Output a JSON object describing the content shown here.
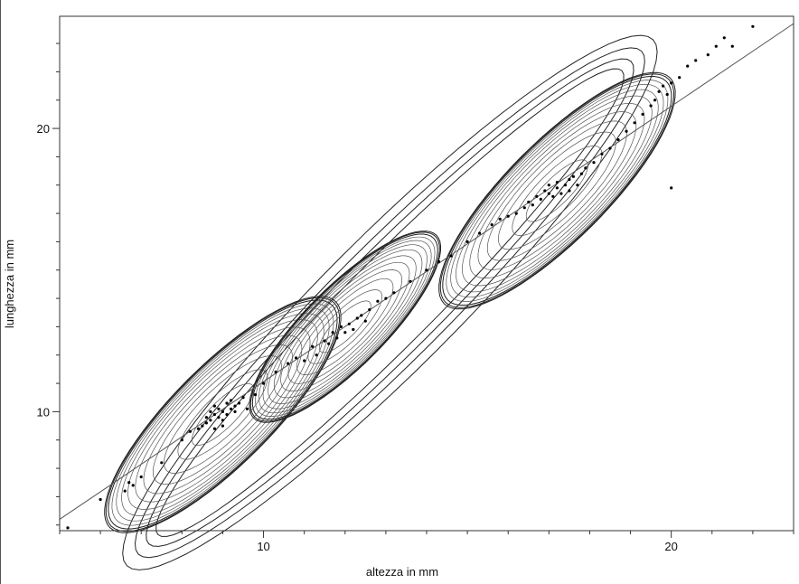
{
  "chart_data": {
    "type": "scatter",
    "title": "",
    "xlabel": "altezza in mm",
    "ylabel": "lunghezza in mm",
    "xlim": [
      5.0,
      23.0
    ],
    "ylim": [
      5.8,
      23.96
    ],
    "x_ticks_labeled": [
      10,
      20
    ],
    "y_ticks_labeled": [
      10,
      20
    ],
    "x_tick_labels": [
      "10",
      "20"
    ],
    "y_tick_labels": [
      "10",
      "20"
    ],
    "x_minor_tick_step": 1,
    "y_minor_tick_step": 1,
    "grid": false,
    "legend": "none",
    "overlays": [
      {
        "kind": "reference-line",
        "from": [
          5.0,
          6.2
        ],
        "to": [
          23.0,
          23.7
        ]
      },
      {
        "kind": "density-contours",
        "modes": [
          [
            9.0,
            9.9
          ],
          [
            12.0,
            13.0
          ],
          [
            17.2,
            17.8
          ]
        ]
      }
    ],
    "series": [
      {
        "points": [
          [
            5.2,
            5.9
          ],
          [
            6.0,
            6.9
          ],
          [
            6.6,
            7.2
          ],
          [
            6.7,
            7.5
          ],
          [
            6.8,
            7.4
          ],
          [
            7.0,
            7.7
          ],
          [
            7.5,
            8.2
          ],
          [
            8.0,
            9.0
          ],
          [
            8.2,
            9.3
          ],
          [
            8.4,
            9.4
          ],
          [
            8.5,
            9.5
          ],
          [
            8.6,
            9.8
          ],
          [
            8.6,
            9.6
          ],
          [
            8.7,
            10.0
          ],
          [
            8.7,
            9.7
          ],
          [
            8.8,
            9.9
          ],
          [
            8.8,
            10.2
          ],
          [
            8.9,
            9.8
          ],
          [
            8.9,
            10.1
          ],
          [
            9.0,
            10.0
          ],
          [
            9.0,
            9.7
          ],
          [
            9.1,
            10.3
          ],
          [
            9.1,
            9.9
          ],
          [
            9.2,
            10.1
          ],
          [
            9.2,
            10.4
          ],
          [
            9.3,
            10.0
          ],
          [
            9.3,
            10.2
          ],
          [
            9.4,
            10.3
          ],
          [
            9.5,
            10.5
          ],
          [
            9.0,
            9.5
          ],
          [
            8.8,
            9.4
          ],
          [
            9.6,
            10.1
          ],
          [
            9.8,
            10.6
          ],
          [
            10.0,
            11.0
          ],
          [
            10.3,
            11.4
          ],
          [
            10.6,
            11.7
          ],
          [
            10.8,
            11.9
          ],
          [
            11.0,
            11.8
          ],
          [
            11.2,
            12.3
          ],
          [
            11.3,
            12.0
          ],
          [
            11.5,
            12.5
          ],
          [
            11.6,
            12.4
          ],
          [
            11.7,
            12.8
          ],
          [
            11.8,
            12.6
          ],
          [
            11.9,
            13.0
          ],
          [
            12.0,
            12.8
          ],
          [
            12.1,
            13.1
          ],
          [
            12.2,
            12.9
          ],
          [
            12.3,
            13.3
          ],
          [
            12.4,
            13.4
          ],
          [
            12.5,
            13.2
          ],
          [
            12.6,
            13.6
          ],
          [
            12.8,
            13.9
          ],
          [
            13.0,
            14.0
          ],
          [
            13.2,
            14.2
          ],
          [
            13.6,
            14.6
          ],
          [
            14.0,
            15.0
          ],
          [
            14.3,
            15.3
          ],
          [
            14.6,
            15.5
          ],
          [
            15.0,
            16.0
          ],
          [
            15.3,
            16.3
          ],
          [
            15.6,
            16.6
          ],
          [
            15.8,
            16.8
          ],
          [
            16.0,
            16.9
          ],
          [
            16.2,
            17.0
          ],
          [
            16.4,
            17.2
          ],
          [
            16.5,
            17.4
          ],
          [
            16.6,
            17.3
          ],
          [
            16.7,
            17.6
          ],
          [
            16.8,
            17.5
          ],
          [
            16.9,
            17.8
          ],
          [
            17.0,
            17.7
          ],
          [
            17.0,
            18.0
          ],
          [
            17.1,
            17.6
          ],
          [
            17.2,
            17.9
          ],
          [
            17.2,
            18.1
          ],
          [
            17.3,
            17.7
          ],
          [
            17.4,
            18.0
          ],
          [
            17.5,
            18.2
          ],
          [
            17.5,
            17.8
          ],
          [
            17.6,
            18.3
          ],
          [
            17.7,
            18.0
          ],
          [
            17.8,
            18.4
          ],
          [
            17.9,
            18.6
          ],
          [
            18.1,
            18.8
          ],
          [
            18.3,
            19.1
          ],
          [
            18.5,
            19.3
          ],
          [
            18.7,
            19.6
          ],
          [
            18.9,
            19.9
          ],
          [
            19.1,
            20.2
          ],
          [
            19.3,
            20.5
          ],
          [
            19.5,
            20.8
          ],
          [
            19.6,
            21.0
          ],
          [
            19.7,
            21.3
          ],
          [
            19.8,
            21.5
          ],
          [
            19.9,
            21.2
          ],
          [
            20.0,
            21.6
          ],
          [
            20.2,
            21.8
          ],
          [
            20.4,
            22.2
          ],
          [
            20.6,
            22.4
          ],
          [
            20.9,
            22.6
          ],
          [
            21.1,
            22.9
          ],
          [
            21.3,
            23.2
          ],
          [
            21.5,
            22.9
          ],
          [
            22.0,
            23.6
          ],
          [
            20.0,
            17.9
          ]
        ]
      }
    ]
  }
}
